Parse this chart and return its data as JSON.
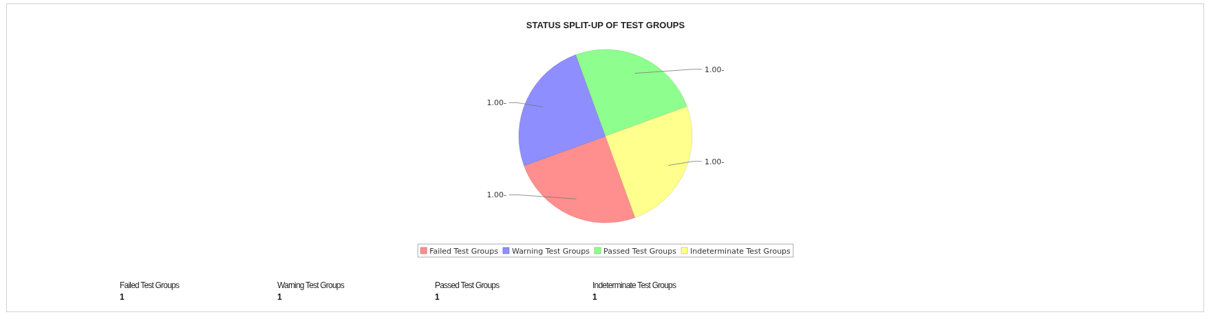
{
  "chart_data": {
    "type": "pie",
    "title": "STATUS SPLIT-UP OF TEST GROUPS",
    "categories": [
      "Failed Test Groups",
      "Warning Test Groups",
      "Passed Test Groups",
      "Indeterminate Test Groups"
    ],
    "values": [
      1,
      1,
      1,
      1
    ],
    "colors": [
      "#ff8e8e",
      "#8e8eff",
      "#8eff8e",
      "#ffff8e"
    ],
    "value_labels": [
      "1.00-",
      "1.00-",
      "1.00-",
      "1.00-"
    ],
    "annotations": [
      "1",
      "1",
      "1",
      "1"
    ],
    "legend": "bottom"
  }
}
